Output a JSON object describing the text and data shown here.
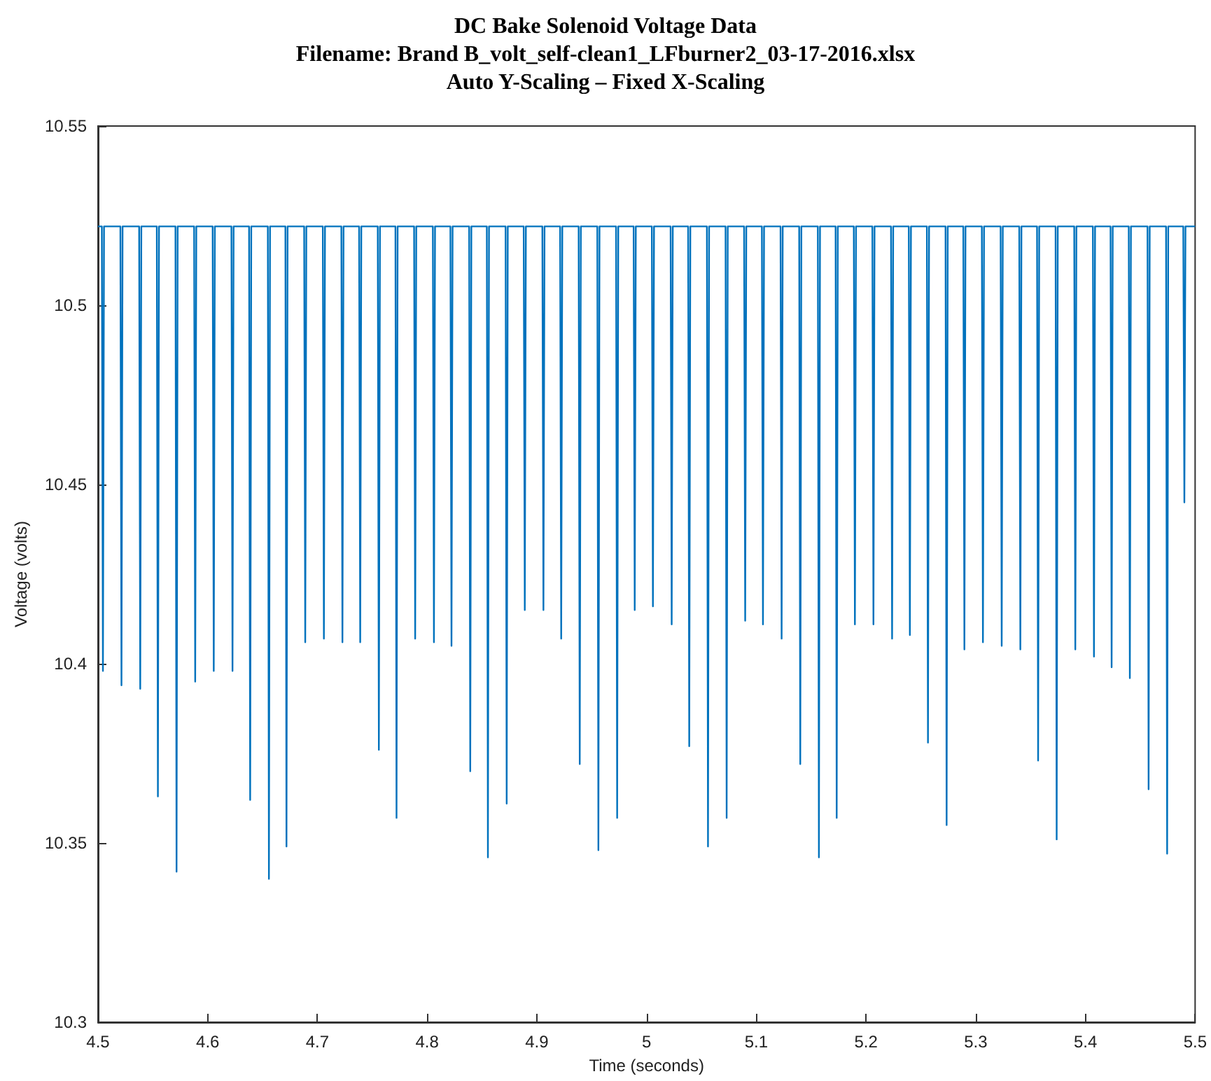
{
  "chart_data": {
    "type": "line",
    "title": "DC Bake Solenoid Voltage Data",
    "subtitle": "Filename: Brand B_volt_self-clean1_LFburner2_03-17-2016.xlsx\nAuto Y-Scaling – Fixed X-Scaling",
    "xlabel": "Time (seconds)",
    "ylabel": "Voltage (volts)",
    "xlim": [
      4.5,
      5.5
    ],
    "xticks": [
      4.5,
      4.6,
      4.7,
      4.8,
      4.9,
      5,
      5.1,
      5.2,
      5.3,
      5.4,
      5.5
    ],
    "ylim": [
      10.3,
      10.55
    ],
    "yticks": [
      10.3,
      10.35,
      10.4,
      10.45,
      10.5,
      10.55
    ],
    "grid": false,
    "marker": "none",
    "line_style": "solid",
    "series": [
      {
        "color": "#0072bd",
        "x": [
          4.5,
          4.5035,
          4.5045,
          4.5055,
          4.5204,
          4.5214,
          4.5224,
          4.5375,
          4.5385,
          4.5395,
          4.5536,
          4.5546,
          4.5556,
          4.5706,
          4.5716,
          4.5726,
          4.5876,
          4.5886,
          4.5896,
          4.6045,
          4.6055,
          4.6065,
          4.6216,
          4.6226,
          4.6236,
          4.6377,
          4.6387,
          4.6397,
          4.6548,
          4.6558,
          4.6568,
          4.6708,
          4.6718,
          4.6728,
          4.6879,
          4.6889,
          4.6899,
          4.7049,
          4.7059,
          4.7069,
          4.7218,
          4.7228,
          4.7238,
          4.738,
          4.739,
          4.74,
          4.755,
          4.756,
          4.757,
          4.7711,
          4.7721,
          4.7731,
          4.7881,
          4.7891,
          4.7901,
          4.8052,
          4.8062,
          4.8072,
          4.8212,
          4.8222,
          4.8232,
          4.8383,
          4.8393,
          4.8403,
          4.8544,
          4.8554,
          4.8564,
          4.8715,
          4.8725,
          4.8735,
          4.888,
          4.889,
          4.89,
          4.905,
          4.906,
          4.907,
          4.9212,
          4.9222,
          4.9232,
          4.9381,
          4.9391,
          4.9401,
          4.9551,
          4.9561,
          4.9571,
          4.9722,
          4.9732,
          4.9742,
          4.9882,
          4.9892,
          4.9902,
          5.0048,
          5.0058,
          5.0068,
          5.0219,
          5.0229,
          5.0239,
          5.0379,
          5.0389,
          5.0399,
          5.055,
          5.056,
          5.057,
          5.072,
          5.073,
          5.074,
          5.0889,
          5.0899,
          5.0909,
          5.1051,
          5.1061,
          5.1071,
          5.1221,
          5.1231,
          5.1241,
          5.1391,
          5.1401,
          5.1411,
          5.1561,
          5.1571,
          5.1581,
          5.1723,
          5.1733,
          5.1743,
          5.1889,
          5.1899,
          5.1909,
          5.2058,
          5.2068,
          5.2078,
          5.2228,
          5.2238,
          5.2248,
          5.239,
          5.24,
          5.241,
          5.2555,
          5.2565,
          5.2575,
          5.2725,
          5.2735,
          5.2745,
          5.2887,
          5.2897,
          5.2907,
          5.3056,
          5.3066,
          5.3076,
          5.3227,
          5.3237,
          5.3247,
          5.3397,
          5.3407,
          5.3417,
          5.3559,
          5.3569,
          5.3579,
          5.3728,
          5.3738,
          5.3748,
          5.3898,
          5.3908,
          5.3918,
          5.4068,
          5.4078,
          5.4088,
          5.4229,
          5.4239,
          5.4249,
          5.4395,
          5.4405,
          5.4415,
          5.4566,
          5.4576,
          5.4586,
          5.4735,
          5.4745,
          5.4755,
          5.4892,
          5.4902,
          5.4912,
          5.5
        ],
        "values": [
          10.522,
          10.522,
          10.398,
          10.522,
          10.522,
          10.394,
          10.522,
          10.522,
          10.393,
          10.522,
          10.522,
          10.363,
          10.522,
          10.522,
          10.342,
          10.522,
          10.522,
          10.395,
          10.522,
          10.522,
          10.398,
          10.522,
          10.522,
          10.398,
          10.522,
          10.522,
          10.362,
          10.522,
          10.522,
          10.34,
          10.522,
          10.522,
          10.349,
          10.522,
          10.522,
          10.406,
          10.522,
          10.522,
          10.407,
          10.522,
          10.522,
          10.406,
          10.522,
          10.522,
          10.406,
          10.522,
          10.522,
          10.376,
          10.522,
          10.522,
          10.357,
          10.522,
          10.522,
          10.407,
          10.522,
          10.522,
          10.406,
          10.522,
          10.522,
          10.405,
          10.522,
          10.522,
          10.37,
          10.522,
          10.522,
          10.346,
          10.522,
          10.522,
          10.361,
          10.522,
          10.522,
          10.415,
          10.522,
          10.522,
          10.415,
          10.522,
          10.522,
          10.407,
          10.522,
          10.522,
          10.372,
          10.522,
          10.522,
          10.348,
          10.522,
          10.522,
          10.357,
          10.522,
          10.522,
          10.415,
          10.522,
          10.522,
          10.416,
          10.522,
          10.522,
          10.411,
          10.522,
          10.522,
          10.377,
          10.522,
          10.522,
          10.349,
          10.522,
          10.522,
          10.357,
          10.522,
          10.522,
          10.412,
          10.522,
          10.522,
          10.411,
          10.522,
          10.522,
          10.407,
          10.522,
          10.522,
          10.372,
          10.522,
          10.522,
          10.346,
          10.522,
          10.522,
          10.357,
          10.522,
          10.522,
          10.411,
          10.522,
          10.522,
          10.411,
          10.522,
          10.522,
          10.407,
          10.522,
          10.522,
          10.408,
          10.522,
          10.522,
          10.378,
          10.522,
          10.522,
          10.355,
          10.522,
          10.522,
          10.404,
          10.522,
          10.522,
          10.406,
          10.522,
          10.522,
          10.405,
          10.522,
          10.522,
          10.404,
          10.522,
          10.522,
          10.373,
          10.522,
          10.522,
          10.351,
          10.522,
          10.522,
          10.404,
          10.522,
          10.522,
          10.402,
          10.522,
          10.522,
          10.399,
          10.522,
          10.522,
          10.396,
          10.522,
          10.522,
          10.365,
          10.522,
          10.522,
          10.347,
          10.522,
          10.522,
          10.445,
          10.522,
          10.522
        ]
      }
    ]
  }
}
